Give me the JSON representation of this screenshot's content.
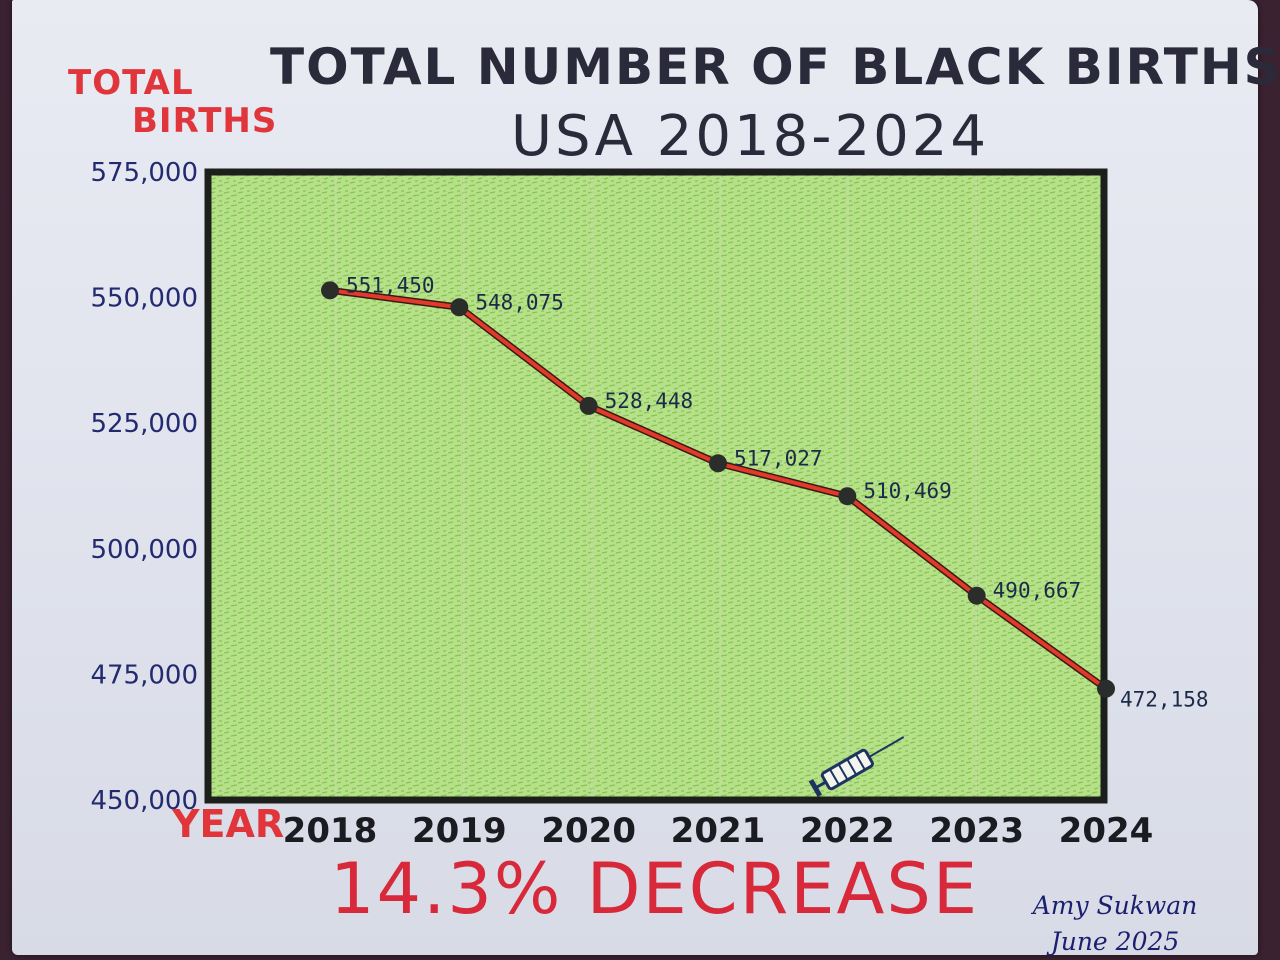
{
  "chart_data": {
    "type": "line",
    "title": "TOTAL NUMBER OF BLACK BIRTHS",
    "subtitle": "USA 2018-2024",
    "ylabel": [
      "TOTAL",
      "BIRTHS"
    ],
    "xlabel": "YEAR",
    "x": [
      "2018",
      "2019",
      "2020",
      "2021",
      "2022",
      "2023",
      "2024"
    ],
    "values": [
      551450,
      548075,
      528448,
      517027,
      510469,
      490667,
      472158
    ],
    "data_labels": [
      "551,450",
      "548,075",
      "528,448",
      "517,027",
      "510,469",
      "490,667",
      "472,158"
    ],
    "yticks": [
      450000,
      475000,
      500000,
      525000,
      550000,
      575000
    ],
    "ytick_labels": [
      "450,000",
      "475,000",
      "500,000",
      "525,000",
      "550,000",
      "575,000"
    ],
    "ylim": [
      450000,
      575000
    ],
    "grid": true,
    "line_color": "#e23a2a",
    "plot_bg": "#b8df8a",
    "annotation": "14.3% DECREASE",
    "annotation_color": "#d8293a",
    "icon": "syringe-icon"
  },
  "signature": {
    "name": "Amy Sukwan",
    "date": "June 2025"
  }
}
